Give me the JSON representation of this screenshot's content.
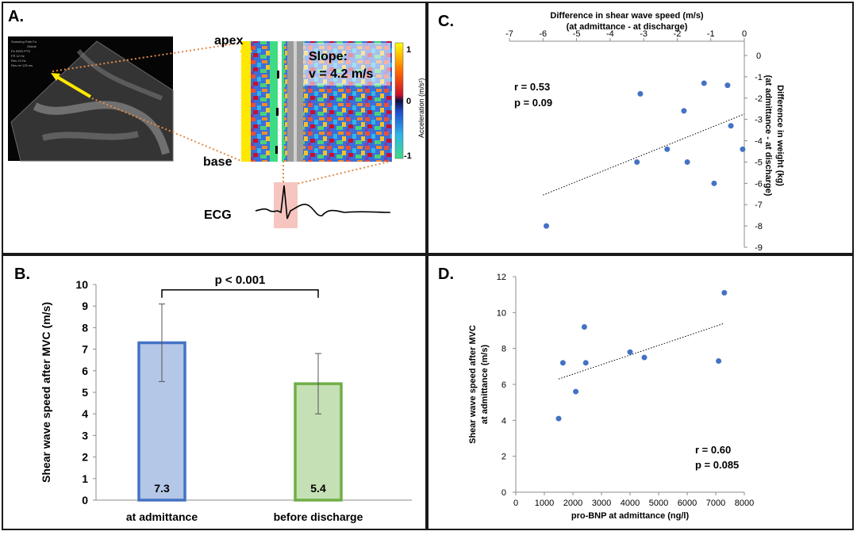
{
  "panels": {
    "a": {
      "label": "A.",
      "ultrasound_lines": [
        "Scanning Path Fa",
        "Global",
        "Fb SERI PTS",
        "FR 12 Hz",
        "Res 13 Hz",
        "Res ret 125 ms"
      ],
      "apex_label": "apex",
      "base_label": "base",
      "slope_label": "Slope:",
      "slope_value": "v = 4.2 m/s",
      "ecg_label": "ECG",
      "colorbar_title": "Acceleration (m/s²)",
      "colorbar_ticks": [
        "1",
        "0",
        "-1"
      ]
    },
    "b": {
      "label": "B."
    },
    "c": {
      "label": "C."
    },
    "d": {
      "label": "D."
    }
  },
  "colors": {
    "bar_admit_fill": "#b4c7e7",
    "bar_admit_edge": "#4472c4",
    "bar_discharge_fill": "#c5e0b4",
    "bar_discharge_edge": "#70ad47",
    "scatter_point": "#4472c4",
    "ecg_highlight": "#f4b6b0",
    "guide_line": "#e08a4a"
  },
  "chart_data": [
    {
      "panel": "B",
      "type": "bar",
      "categories": [
        "at admittance",
        "before discharge"
      ],
      "values": [
        7.3,
        5.4
      ],
      "data_labels": [
        "7.3",
        "5.4"
      ],
      "error_low": [
        5.5,
        4.0
      ],
      "error_high": [
        9.1,
        6.8
      ],
      "ylabel": "Shear wave speed after MVC (m/s)",
      "ylim": [
        0,
        10
      ],
      "yticks": [
        "0",
        "1",
        "2",
        "3",
        "4",
        "5",
        "6",
        "7",
        "8",
        "9",
        "10"
      ],
      "annotation": "p < 0.001",
      "grid": false
    },
    {
      "panel": "C",
      "type": "scatter",
      "xlabel": "Difference in shear wave speed (m/s)",
      "xlabel2": "(at admittance - at discharge)",
      "ylabel": "Difference in weight (kg)",
      "ylabel2": "(at admittance - at discharge)",
      "xlim": [
        -7,
        0
      ],
      "ylim": [
        -9,
        0
      ],
      "xticks": [
        "-7",
        "-6",
        "-5",
        "-4",
        "-3",
        "-2",
        "-1",
        "0"
      ],
      "yticks": [
        "0",
        "-1",
        "-2",
        "-3",
        "-4",
        "-5",
        "-6",
        "-7",
        "-8",
        "-9"
      ],
      "x": [
        -5.9,
        -3.1,
        -3.2,
        -2.3,
        -1.8,
        -1.7,
        -1.2,
        -0.9,
        -0.5,
        -0.4,
        -0.05
      ],
      "y": [
        -8.0,
        -1.8,
        -5.0,
        -4.4,
        -2.6,
        -5.0,
        -1.3,
        -6.0,
        -1.4,
        -3.3,
        -4.4
      ],
      "trendline": {
        "x": [
          -6.0,
          0.0
        ],
        "y": [
          -6.55,
          -2.75
        ]
      },
      "stats": [
        "r = 0.53",
        "p = 0.09"
      ],
      "grid": false
    },
    {
      "panel": "D",
      "type": "scatter",
      "xlabel": "pro-BNP at admittance (ng/l)",
      "ylabel": "Shear wave speed after MVC",
      "ylabel2": "at admittance (m/s)",
      "xlim": [
        0,
        8000
      ],
      "ylim": [
        0,
        12
      ],
      "xticks": [
        "0",
        "1000",
        "2000",
        "3000",
        "4000",
        "5000",
        "6000",
        "7000",
        "8000"
      ],
      "yticks": [
        "0",
        "2",
        "4",
        "6",
        "8",
        "10",
        "12"
      ],
      "x": [
        1500,
        1650,
        2100,
        2400,
        2450,
        4000,
        4500,
        7100,
        7300
      ],
      "y": [
        4.1,
        7.2,
        5.6,
        9.2,
        7.2,
        7.8,
        7.5,
        7.3,
        11.1
      ],
      "trendline": {
        "x": [
          1500,
          7300
        ],
        "y": [
          6.3,
          9.4
        ]
      },
      "stats": [
        "r = 0.60",
        "p = 0.085"
      ],
      "grid": false
    }
  ]
}
